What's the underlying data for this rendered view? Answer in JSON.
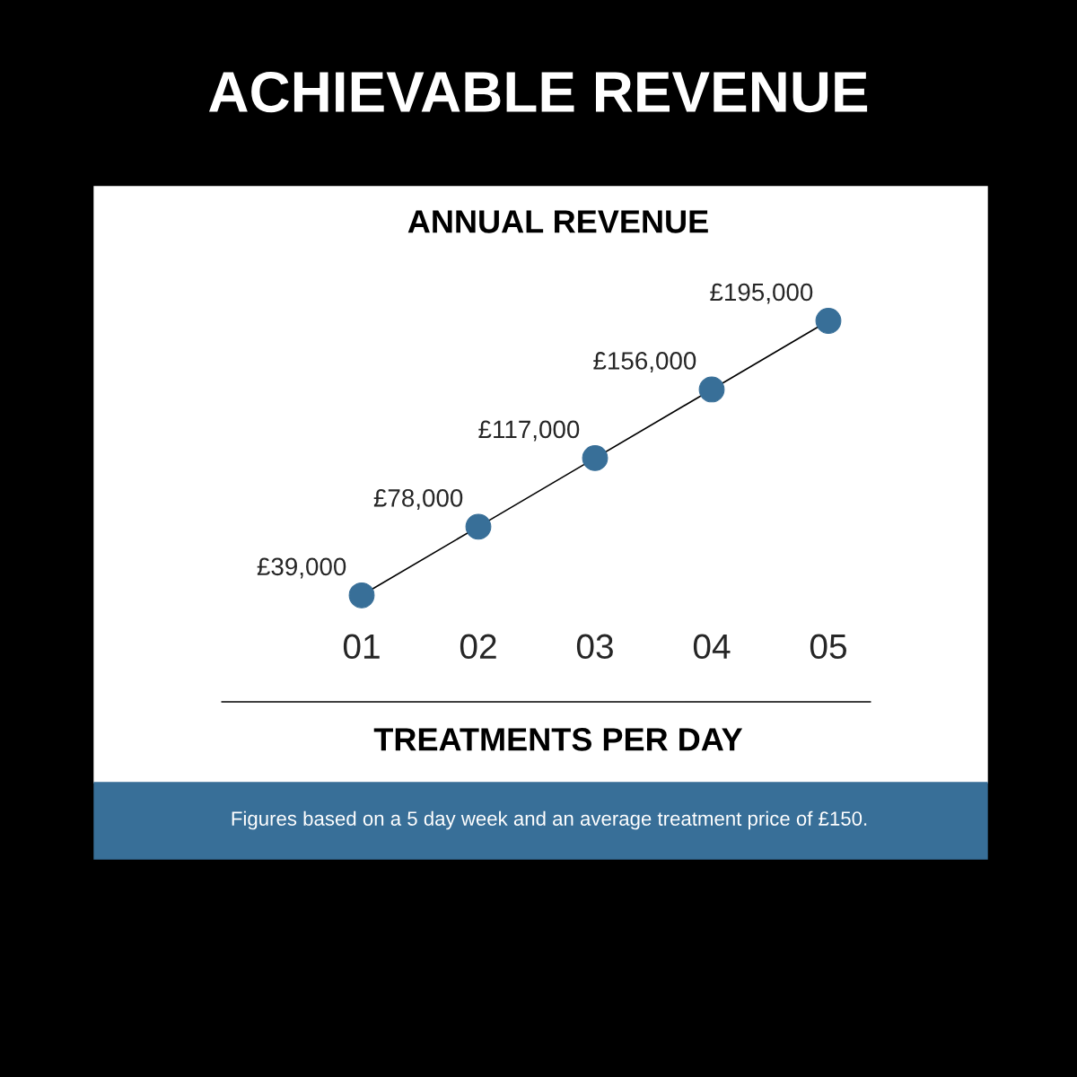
{
  "chart_data": {
    "type": "line",
    "title": "ACHIEVABLE REVENUE",
    "subtitle": "ANNUAL REVENUE",
    "xlabel": "TREATMENTS PER DAY",
    "categories": [
      "01",
      "02",
      "03",
      "04",
      "05"
    ],
    "series": [
      {
        "color": "#386f98",
        "values": [
          39000,
          78000,
          117000,
          156000,
          195000
        ],
        "value_labels": [
          "£39,000",
          "£78,000",
          "£117,000",
          "£156,000",
          "£195,000"
        ]
      }
    ],
    "marker": "circle",
    "grid": false,
    "annotations": [
      "Figures based on a 5 day week and an average treatment price of £150."
    ]
  }
}
